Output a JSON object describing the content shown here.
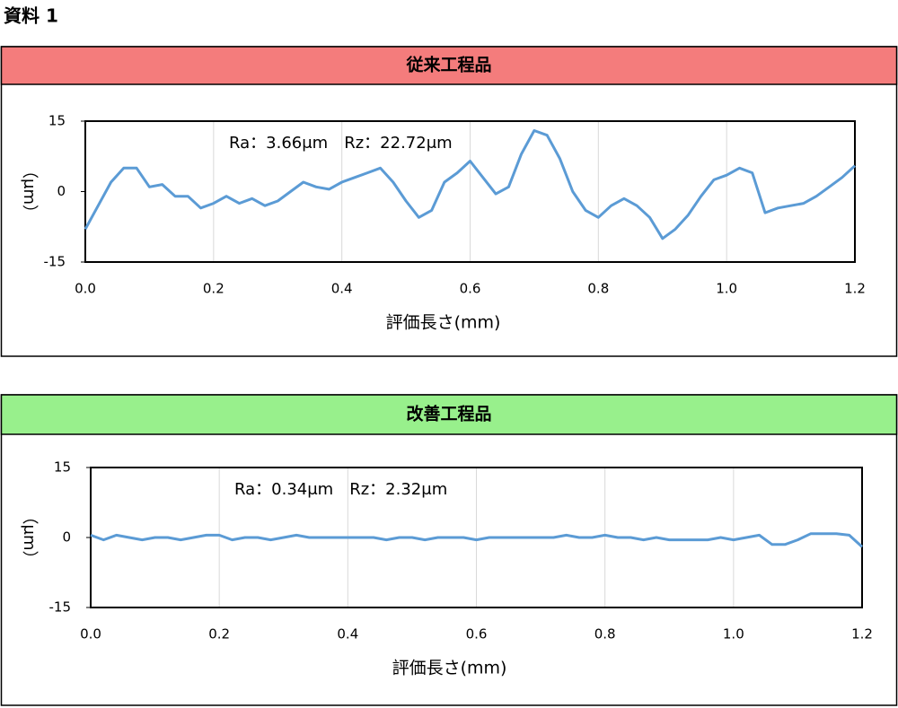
{
  "heading": "資料 1",
  "chart_data": [
    {
      "type": "line",
      "title": "従来工程品",
      "header_color": "#f47c7c",
      "annotation": "Ra：3.66μm　Rz：22.72μm",
      "xlabel": "評価長さ(mm)",
      "ylabel": "（μm）",
      "xlim": [
        0,
        1.2
      ],
      "ylim": [
        -15,
        15
      ],
      "xticks": [
        {
          "value": 0,
          "label": "0.0"
        },
        0.2,
        0.4,
        0.6,
        0.8,
        {
          "value": 1,
          "label": "1.0"
        },
        1.2
      ],
      "yticks": [
        -15,
        0,
        15
      ],
      "grid": true,
      "x": [
        0,
        0.02,
        0.04,
        0.06,
        0.08,
        0.1,
        0.12,
        0.14,
        0.16,
        0.18,
        0.2,
        0.22,
        0.24,
        0.26,
        0.28,
        0.3,
        0.32,
        0.34,
        0.36,
        0.38,
        0.4,
        0.42,
        0.44,
        0.46,
        0.48,
        0.5,
        0.52,
        0.54,
        0.56,
        0.58,
        0.6,
        0.62,
        0.64,
        0.66,
        0.68,
        0.7,
        0.72,
        0.74,
        0.76,
        0.78,
        0.8,
        0.82,
        0.84,
        0.86,
        0.88,
        0.9,
        0.92,
        0.94,
        0.96,
        0.98,
        1,
        1.02,
        1.04,
        1.06,
        1.08,
        1.1,
        1.12,
        1.14,
        1.16,
        1.18,
        1.2
      ],
      "series": [
        {
          "color": "#5b9bd5",
          "values": [
            -8,
            -3,
            2,
            5,
            5,
            1,
            1.5,
            -1,
            -1,
            -3.5,
            -2.5,
            -1,
            -2.5,
            -1.5,
            -3,
            -2,
            0,
            2,
            1,
            0.5,
            2,
            3,
            4,
            5,
            2,
            -2,
            -5.5,
            -4,
            2,
            4,
            6.5,
            3,
            -0.5,
            1,
            8,
            13,
            12,
            7,
            0,
            -4,
            -5.5,
            -3,
            -1.5,
            -3,
            -5.5,
            -10,
            -8,
            -5,
            -1,
            2.5,
            3.5,
            5,
            4,
            -4.5,
            -3.5,
            -3,
            -2.5,
            -1,
            1,
            3,
            5.5
          ]
        }
      ]
    },
    {
      "type": "line",
      "title": "改善工程品",
      "header_color": "#98f08c",
      "annotation": "Ra：0.34μm　Rz：2.32μm",
      "xlabel": "評価長さ(mm)",
      "ylabel": "（μm）",
      "xlim": [
        0,
        1.2
      ],
      "ylim": [
        -15,
        15
      ],
      "xticks": [
        {
          "value": 0,
          "label": "0.0"
        },
        0.2,
        0.4,
        0.6,
        0.8,
        {
          "value": 1,
          "label": "1.0"
        },
        1.2
      ],
      "yticks": [
        -15,
        0,
        15
      ],
      "grid": true,
      "x": [
        0,
        0.02,
        0.04,
        0.06,
        0.08,
        0.1,
        0.12,
        0.14,
        0.16,
        0.18,
        0.2,
        0.22,
        0.24,
        0.26,
        0.28,
        0.3,
        0.32,
        0.34,
        0.36,
        0.38,
        0.4,
        0.42,
        0.44,
        0.46,
        0.48,
        0.5,
        0.52,
        0.54,
        0.56,
        0.58,
        0.6,
        0.62,
        0.64,
        0.66,
        0.68,
        0.7,
        0.72,
        0.74,
        0.76,
        0.78,
        0.8,
        0.82,
        0.84,
        0.86,
        0.88,
        0.9,
        0.92,
        0.94,
        0.96,
        0.98,
        1,
        1.02,
        1.04,
        1.06,
        1.08,
        1.1,
        1.12,
        1.14,
        1.16,
        1.18,
        1.2
      ],
      "series": [
        {
          "color": "#5b9bd5",
          "values": [
            0.5,
            -0.5,
            0.5,
            0,
            -0.5,
            0,
            0,
            -0.5,
            0,
            0.5,
            0.5,
            -0.5,
            0,
            0,
            -0.5,
            0,
            0.5,
            0,
            0,
            0,
            0,
            0,
            0,
            -0.5,
            0,
            0,
            -0.5,
            0,
            0,
            0,
            -0.5,
            0,
            0,
            0,
            0,
            0,
            0,
            0.5,
            0,
            0,
            0.5,
            0,
            0,
            -0.5,
            0,
            -0.5,
            -0.5,
            -0.5,
            -0.5,
            0,
            -0.5,
            0,
            0.5,
            -1.5,
            -1.5,
            -0.5,
            0.8,
            0.8,
            0.8,
            0.5,
            -2
          ]
        }
      ]
    }
  ]
}
